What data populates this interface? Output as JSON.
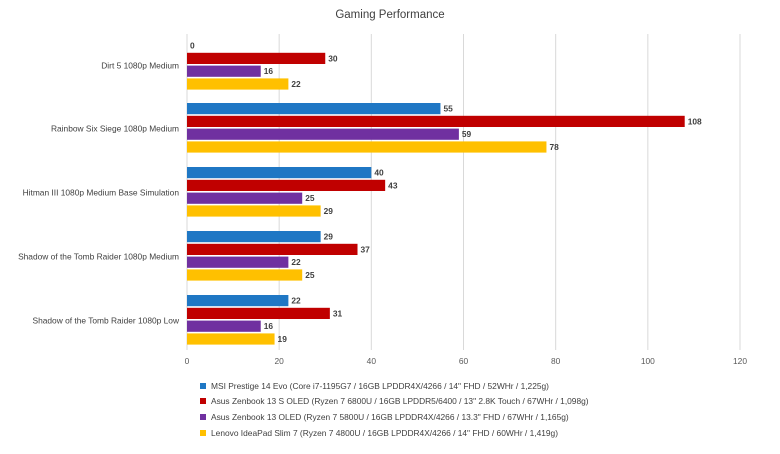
{
  "chart_data": {
    "type": "bar",
    "orientation": "horizontal",
    "title": "Gaming Performance",
    "categories": [
      "Dirt 5 1080p Medium",
      "Rainbow Six Siege 1080p Medium",
      "Hitman III 1080p Medium Base Simulation",
      "Shadow of the Tomb Raider 1080p Medium",
      "Shadow of the Tomb Raider 1080p Low"
    ],
    "series": [
      {
        "name": "MSI Prestige 14 Evo (Core i7-1195G7 / 16GB LPDDR4X/4266 / 14\" FHD / 52WHr / 1,225g)",
        "color": "#1f77c4",
        "values": [
          0,
          55,
          40,
          29,
          22
        ]
      },
      {
        "name": "Asus Zenbook 13 S OLED (Ryzen 7 6800U / 16GB LPDDR5/6400 / 13\" 2.8K Touch / 67WHr / 1,098g)",
        "color": "#c00000",
        "values": [
          30,
          108,
          43,
          37,
          31
        ]
      },
      {
        "name": "Asus Zenbook 13 OLED (Ryzen 7 5800U / 16GB LPDDR4X/4266 / 13.3\" FHD / 67WHr / 1,165g)",
        "color": "#7030a0",
        "values": [
          16,
          59,
          25,
          22,
          16
        ]
      },
      {
        "name": "Lenovo IdeaPad Slim 7 (Ryzen 7 4800U / 16GB LPDDR4X/4266 / 14\" FHD / 60WHr / 1,419g)",
        "color": "#ffc000",
        "values": [
          22,
          78,
          29,
          25,
          19
        ]
      }
    ],
    "xlim": [
      0,
      120
    ],
    "xticks": [
      0,
      20,
      40,
      60,
      80,
      100,
      120
    ],
    "xlabel": "",
    "ylabel": "",
    "grid": "vertical",
    "legend": "bottom"
  }
}
